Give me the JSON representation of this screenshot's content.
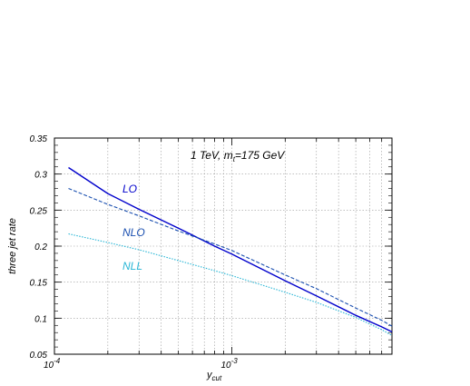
{
  "chart_data": {
    "type": "line",
    "title": "",
    "annotation": {
      "prefix": "1 TeV, m",
      "sub": "t",
      "suffix": "=175 GeV"
    },
    "xlabel": {
      "base": "y",
      "sub": "cut"
    },
    "ylabel": "three jet rate",
    "x_scale": "log",
    "xlim": [
      0.0001,
      0.008
    ],
    "ylim": [
      0.05,
      0.35
    ],
    "grid": true,
    "x_ticks": [
      {
        "value": 0.0001,
        "base": "10",
        "exp": "-4"
      },
      {
        "value": 0.001,
        "base": "10",
        "exp": "-3"
      }
    ],
    "y_ticks": [
      {
        "value": 0.05,
        "label": "0.05"
      },
      {
        "value": 0.1,
        "label": "0.1"
      },
      {
        "value": 0.15,
        "label": "0.15"
      },
      {
        "value": 0.2,
        "label": "0.2"
      },
      {
        "value": 0.25,
        "label": "0.25"
      },
      {
        "value": 0.3,
        "label": "0.3"
      },
      {
        "value": 0.35,
        "label": "0.35"
      }
    ],
    "series": [
      {
        "name": "LO",
        "color": "#0000cc",
        "dash": "solid",
        "x": [
          0.00012,
          0.0002,
          0.0003,
          0.0005,
          0.0008,
          0.001,
          0.002,
          0.003,
          0.005,
          0.007,
          0.008
        ],
        "y": [
          0.309,
          0.273,
          0.251,
          0.225,
          0.2,
          0.189,
          0.152,
          0.131,
          0.104,
          0.088,
          0.081
        ]
      },
      {
        "name": "NLO",
        "color": "#1a4fb0",
        "dash": "dashed",
        "x": [
          0.00012,
          0.0002,
          0.0003,
          0.0005,
          0.0008,
          0.001,
          0.002,
          0.003,
          0.005,
          0.007,
          0.008
        ],
        "y": [
          0.28,
          0.258,
          0.242,
          0.221,
          0.203,
          0.194,
          0.16,
          0.141,
          0.114,
          0.097,
          0.089
        ]
      },
      {
        "name": "NLL",
        "color": "#29b6d6",
        "dash": "dotted",
        "x": [
          0.00012,
          0.0002,
          0.0003,
          0.0005,
          0.0008,
          0.001,
          0.002,
          0.003,
          0.005,
          0.007,
          0.008
        ],
        "y": [
          0.217,
          0.205,
          0.195,
          0.18,
          0.166,
          0.159,
          0.136,
          0.122,
          0.101,
          0.084,
          0.076
        ]
      }
    ]
  }
}
